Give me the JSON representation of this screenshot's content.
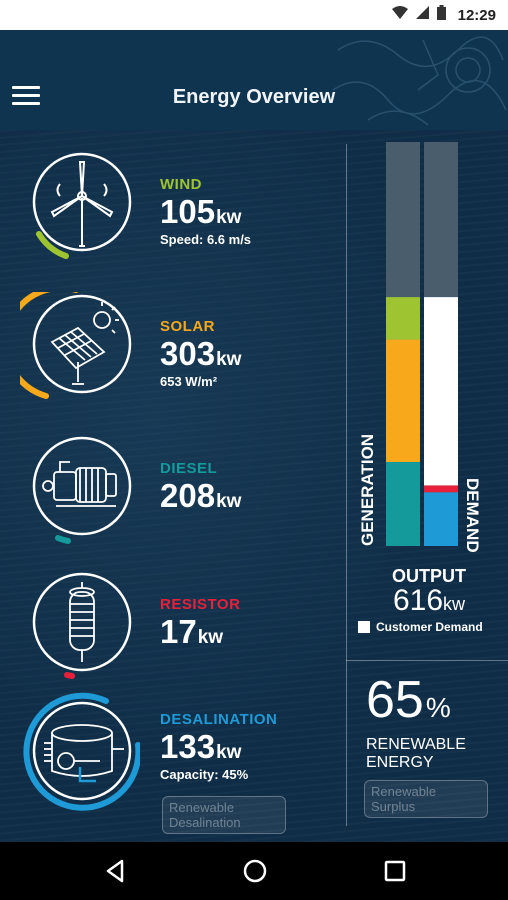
{
  "status_bar": {
    "time": "12:29",
    "icons": [
      "wifi-icon",
      "signal-icon",
      "battery-icon"
    ]
  },
  "app_bar": {
    "title": "Energy Overview",
    "menu_icon": "hamburger-menu-icon"
  },
  "sources": [
    {
      "id": "wind",
      "name": "WIND",
      "value": "105",
      "unit": "kw",
      "sub": "Speed: 6.6 m/s",
      "color": "#9ec531",
      "icon": "wind-turbine-icon",
      "level": 0.18
    },
    {
      "id": "solar",
      "name": "SOLAR",
      "value": "303",
      "unit": "kw",
      "sub": "653 W/m²",
      "color": "#f7a81b",
      "icon": "solar-panel-icon",
      "level": 0.5
    },
    {
      "id": "diesel",
      "name": "DIESEL",
      "value": "208",
      "unit": "kw",
      "sub": "",
      "color": "#159a9c",
      "icon": "diesel-generator-icon",
      "level": 0.06
    },
    {
      "id": "resistor",
      "name": "RESISTOR",
      "value": "17",
      "unit": "kw",
      "sub": "",
      "color": "#e8203a",
      "icon": "resistor-coil-icon",
      "level": 0.03
    },
    {
      "id": "desalination",
      "name": "DESALINATION",
      "value": "133",
      "unit": "kw",
      "sub": "Capacity: 45%",
      "color": "#1e9ad6",
      "icon": "desalination-tank-icon",
      "level": 0.62
    }
  ],
  "desalination_chip": "Renewable Desalination",
  "output": {
    "generation_label": "GENERATION",
    "demand_label": "DEMAND",
    "title": "OUTPUT",
    "value": "616",
    "unit": "kw",
    "legend": "Customer Demand",
    "generation_stack": [
      {
        "name": "Diesel",
        "fraction": 0.208,
        "color": "#159a9c"
      },
      {
        "name": "Solar",
        "fraction": 0.303,
        "color": "#f7a81b"
      },
      {
        "name": "Wind",
        "fraction": 0.105,
        "color": "#9ec531"
      }
    ],
    "demand_stack": [
      {
        "name": "Desalination",
        "fraction": 0.133,
        "color": "#1e9ad6"
      },
      {
        "name": "Resistor",
        "fraction": 0.017,
        "color": "#e8203a"
      },
      {
        "name": "Customer Demand",
        "fraction": 0.466,
        "color": "#ffffff"
      }
    ]
  },
  "renewable": {
    "percent": "65",
    "symbol": "%",
    "label": "RENEWABLE ENERGY",
    "chip": "Renewable Surplus"
  },
  "nav": {
    "icons": [
      "back-icon",
      "home-icon",
      "recents-icon"
    ]
  }
}
